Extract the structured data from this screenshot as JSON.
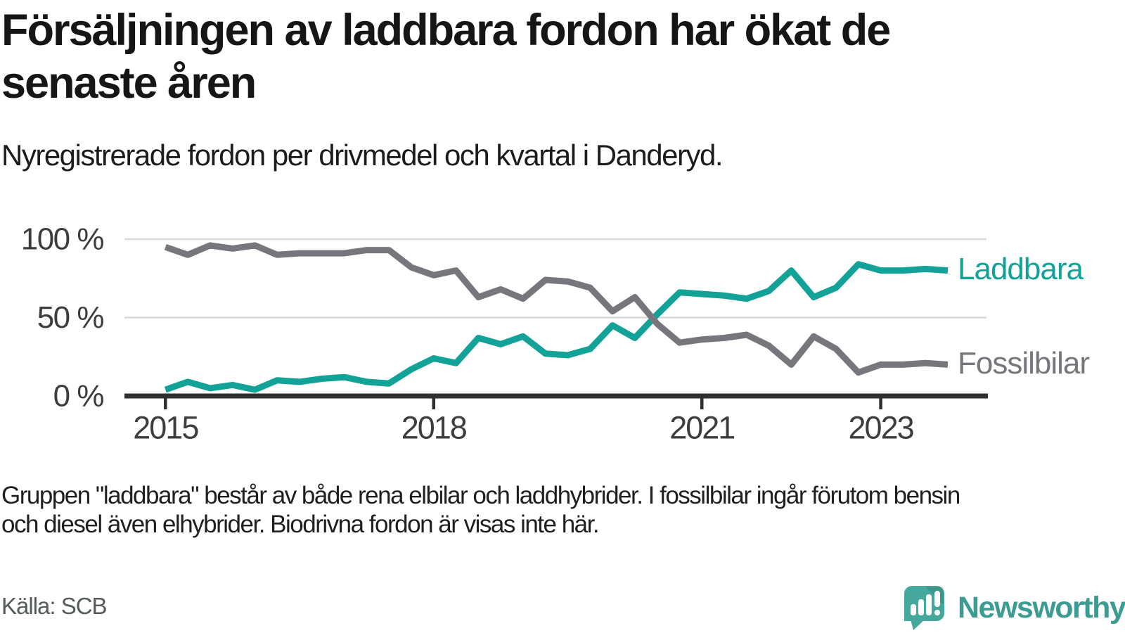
{
  "header": {
    "title_lines": [
      "Försäljningen av laddbara fordon har ökat de",
      "senaste åren"
    ],
    "subtitle": "Nyregistrerade fordon per drivmedel och kvartal i Danderyd."
  },
  "colors": {
    "accent_teal": "#12A297",
    "line_gray": "#76767C",
    "grid": "#D9D9D9",
    "axis": "#2F2F2F",
    "axis_label": "#3D3D3D",
    "logo_teal": "#46A89C"
  },
  "chart_data": {
    "type": "line",
    "title": "Nyregistrerade fordon per drivmedel och kvartal i Danderyd",
    "unit": "%",
    "x_period": "quarterly",
    "grid": "horizontal",
    "ylim": [
      0,
      100
    ],
    "legend_position": "right-of-line-end",
    "categories": [
      "2015 Q1",
      "2015 Q2",
      "2015 Q3",
      "2015 Q4",
      "2016 Q1",
      "2016 Q2",
      "2016 Q3",
      "2016 Q4",
      "2017 Q1",
      "2017 Q2",
      "2017 Q3",
      "2017 Q4",
      "2018 Q1",
      "2018 Q2",
      "2018 Q3",
      "2018 Q4",
      "2019 Q1",
      "2019 Q2",
      "2019 Q3",
      "2019 Q4",
      "2020 Q1",
      "2020 Q2",
      "2020 Q3",
      "2020 Q4",
      "2021 Q1",
      "2021 Q2",
      "2021 Q3",
      "2021 Q4",
      "2022 Q1",
      "2022 Q2",
      "2022 Q3",
      "2022 Q4",
      "2023 Q1",
      "2023 Q2",
      "2023 Q3",
      "2023 Q4"
    ],
    "series": [
      {
        "name": "Laddbara",
        "color": "#12A297",
        "values": [
          4,
          9,
          5,
          7,
          4,
          10,
          9,
          11,
          12,
          9,
          8,
          17,
          24,
          21,
          37,
          33,
          38,
          27,
          26,
          30,
          45,
          37,
          52,
          66,
          65,
          64,
          62,
          67,
          80,
          63,
          69,
          84,
          80,
          80,
          81,
          80
        ]
      },
      {
        "name": "Fossilbilar",
        "color": "#76767C",
        "values": [
          95,
          90,
          96,
          94,
          96,
          90,
          91,
          91,
          91,
          93,
          93,
          82,
          77,
          80,
          63,
          68,
          62,
          74,
          73,
          69,
          54,
          63,
          46,
          34,
          36,
          37,
          39,
          32,
          20,
          38,
          30,
          15,
          20,
          20,
          21,
          20
        ]
      }
    ],
    "y_ticks": [
      {
        "value": 0,
        "label": "0 %"
      },
      {
        "value": 50,
        "label": "50 %"
      },
      {
        "value": 100,
        "label": "100 %"
      }
    ],
    "x_ticks": [
      {
        "index": 0,
        "label": "2015"
      },
      {
        "index": 12,
        "label": "2018"
      },
      {
        "index": 24,
        "label": "2021"
      },
      {
        "index": 32,
        "label": "2023"
      }
    ]
  },
  "footnote_lines": [
    "Gruppen \"laddbara\" består av både rena elbilar och laddhybrider. I fossilbilar ingår förutom bensin",
    "och diesel även elhybrider. Biodrivna fordon är visas inte här."
  ],
  "source": "Källa: SCB",
  "logo": {
    "text": "Newsworthy"
  }
}
